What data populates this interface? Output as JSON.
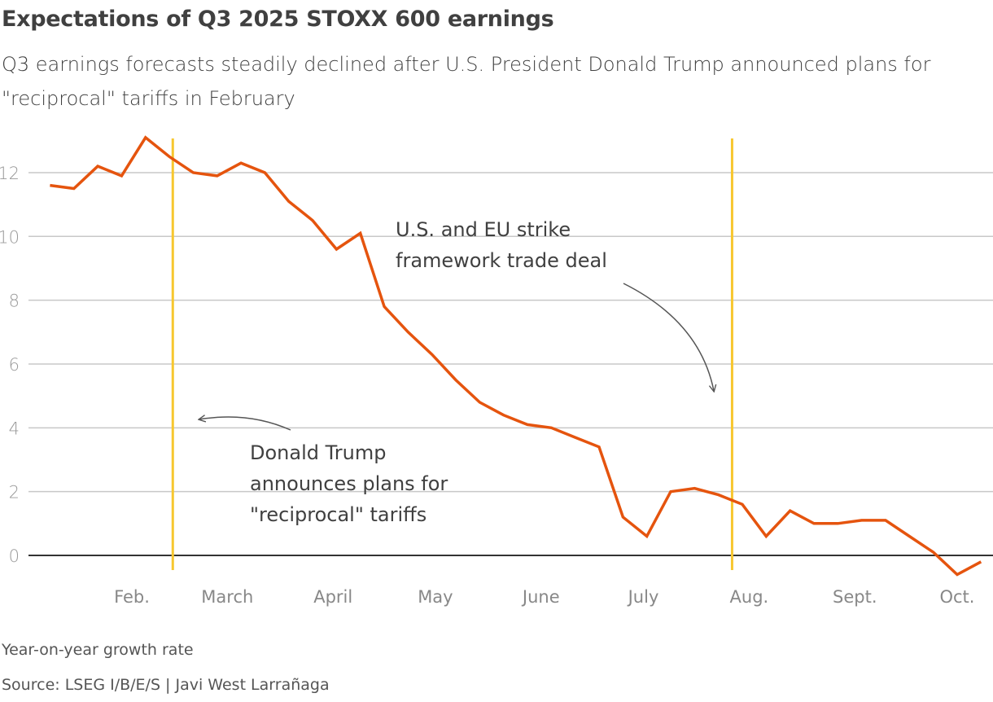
{
  "title": "Expectations of Q3 2025 STOXX 600 earnings",
  "subtitle": "Q3 earnings forecasts steadily declined after U.S. President Donald Trump announced plans for \"reciprocal\" tariffs in February",
  "note": "Year-on-year growth rate",
  "source": "Source: LSEG I/B/E/S | Javi West Larrañaga",
  "chart_data": {
    "type": "line",
    "title": "Expectations of Q3 2025 STOXX 600 earnings",
    "ylabel": "Year-on-year growth rate",
    "ylim": [
      -0.6,
      13.1
    ],
    "yticks": [
      0,
      2,
      4,
      6,
      8,
      10,
      12
    ],
    "grid": true,
    "xtick_labels": [
      {
        "date": "2025-02-01",
        "label": "Feb."
      },
      {
        "date": "2025-03-01",
        "label": "March"
      },
      {
        "date": "2025-04-01",
        "label": "April"
      },
      {
        "date": "2025-05-01",
        "label": "May"
      },
      {
        "date": "2025-06-01",
        "label": "June"
      },
      {
        "date": "2025-07-01",
        "label": "July"
      },
      {
        "date": "2025-08-01",
        "label": "Aug."
      },
      {
        "date": "2025-09-01",
        "label": "Sept."
      },
      {
        "date": "2025-10-01",
        "label": "Oct."
      }
    ],
    "series": [
      {
        "color": "#E5540E",
        "x": [
          "2025-01-08",
          "2025-01-15",
          "2025-01-22",
          "2025-01-29",
          "2025-02-05",
          "2025-02-12",
          "2025-02-19",
          "2025-02-26",
          "2025-03-05",
          "2025-03-12",
          "2025-03-19",
          "2025-03-26",
          "2025-04-02",
          "2025-04-09",
          "2025-04-16",
          "2025-04-23",
          "2025-04-30",
          "2025-05-07",
          "2025-05-14",
          "2025-05-21",
          "2025-05-28",
          "2025-06-04",
          "2025-06-11",
          "2025-06-18",
          "2025-06-25",
          "2025-07-02",
          "2025-07-09",
          "2025-07-16",
          "2025-07-23",
          "2025-07-30",
          "2025-08-06",
          "2025-08-13",
          "2025-08-20",
          "2025-08-27",
          "2025-09-03",
          "2025-09-10",
          "2025-09-17",
          "2025-09-24",
          "2025-10-01",
          "2025-10-08"
        ],
        "values": [
          11.6,
          11.5,
          12.2,
          11.9,
          13.1,
          12.5,
          12.0,
          11.9,
          12.3,
          12.0,
          11.1,
          10.5,
          9.6,
          10.1,
          7.8,
          7.0,
          6.3,
          5.5,
          4.8,
          4.4,
          4.1,
          4.0,
          3.7,
          3.4,
          1.2,
          0.6,
          2.0,
          2.1,
          1.9,
          1.6,
          0.6,
          1.4,
          1.0,
          1.0,
          1.1,
          1.1,
          0.6,
          0.1,
          -0.6,
          -0.2
        ]
      }
    ],
    "events": [
      {
        "date": "2025-02-13",
        "color": "#F7C72F",
        "annotation": [
          "Donald Trump",
          "announces plans for",
          "\"reciprocal\" tariffs"
        ]
      },
      {
        "date": "2025-07-27",
        "color": "#F7C72F",
        "annotation": [
          "U.S. and EU strike",
          "framework trade deal"
        ]
      }
    ]
  }
}
